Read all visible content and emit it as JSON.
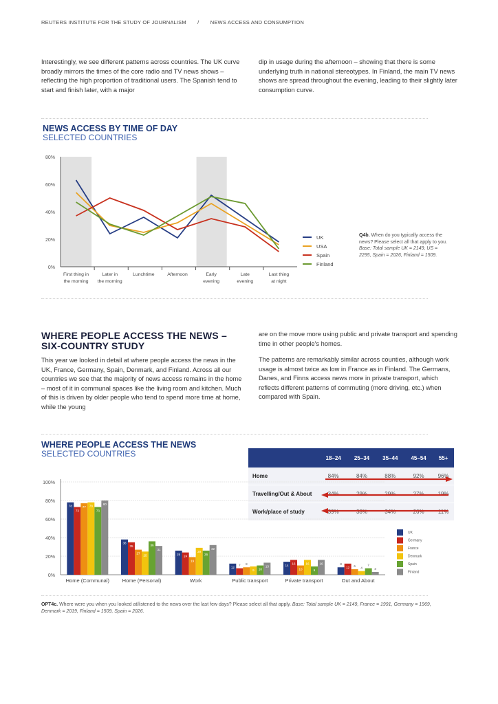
{
  "header": {
    "publisher": "REUTERS INSTITUTE FOR THE STUDY OF JOURNALISM",
    "separator": "/",
    "section": "NEWS ACCESS AND CONSUMPTION"
  },
  "intro": {
    "left": "Interestingly, we see different patterns across countries. The UK curve broadly mirrors the times of the core radio and TV news shows – reflecting the high proportion of traditional users. The Spanish tend to start and finish later, with a major",
    "right": "dip in usage during the afternoon – showing that there is some underlying truth in national stereotypes. In Finland, the main TV news shows are spread throughout the evening, leading to their slightly later consumption curve."
  },
  "line_chart_note": {
    "bold": "Q4b.",
    "text": " When do you typically access the news? Please select all that apply to you. ",
    "italic": "Base: Total sample UK = 2149, US = 2295, Spain = 2026, Finland = 1509."
  },
  "section2": {
    "title_line1": "WHERE PEOPLE ACCESS THE NEWS –",
    "title_line2": "SIX-COUNTRY STUDY",
    "left": "This year we looked in detail at where people access the news in the UK, France, Germany, Spain, Denmark, and Finland. Across all our countries we see that the majority of news access remains in the home – most of it in communal spaces like the living room and kitchen. Much of this is driven by older people who tend to spend more time at home, while the young",
    "right1": "are on the move more using public and private transport and spending time in other people's homes.",
    "right2": "The patterns are remarkably similar across counties, although work usage is almost twice as low in France as in Finland. The Germans, Danes, and Finns access news more in private transport, which reflects different patterns of commuting (more driving, etc.) when compared with Spain."
  },
  "age_table": {
    "columns": [
      "18–24",
      "25–34",
      "35–44",
      "45–54",
      "55+"
    ],
    "rows": [
      {
        "label": "Home",
        "values": [
          "84%",
          "84%",
          "88%",
          "92%",
          "96%"
        ],
        "trend": "right"
      },
      {
        "label": "Travelling/Out & About",
        "values": [
          "34%",
          "29%",
          "29%",
          "27%",
          "19%"
        ],
        "trend": "left"
      },
      {
        "label": "Work/place of study",
        "values": [
          "39%",
          "38%",
          "34%",
          "26%",
          "11%"
        ],
        "trend": "left"
      }
    ],
    "arrow_color": "#c8281e"
  },
  "bar_chart_note": {
    "bold": "OPT4c.",
    "text": " Where were you when you looked at/listened to the news over the last few days? Please select all that apply. ",
    "italic": "Base: Total sample UK = 2149, France = 1991, Germany = 1969, Denmark = 2019, Finland = 1509, Spain = 2026."
  },
  "chart_data": [
    {
      "type": "line",
      "title": "NEWS ACCESS BY TIME OF DAY",
      "subtitle": "SELECTED COUNTRIES",
      "categories": [
        "First thing in the morning",
        "Later in the morning",
        "Lunchtime",
        "Afternoon",
        "Early evening",
        "Late evening",
        "Last thing at night"
      ],
      "highlighted_categories": [
        "First thing in the morning",
        "Early evening"
      ],
      "yticks": [
        "0%",
        "20%",
        "40%",
        "60%",
        "80%"
      ],
      "ylim": [
        0,
        80
      ],
      "legend_position": "right",
      "series": [
        {
          "name": "UK",
          "color": "#263d84",
          "values": [
            63,
            24,
            36,
            21,
            52,
            35,
            18
          ]
        },
        {
          "name": "USA",
          "color": "#e9a223",
          "values": [
            54,
            30,
            25,
            32,
            46,
            31,
            16
          ]
        },
        {
          "name": "Spain",
          "color": "#c8321f",
          "values": [
            37,
            50,
            41,
            27,
            35,
            29,
            11
          ]
        },
        {
          "name": "Finland",
          "color": "#6c9a31",
          "values": [
            47,
            31,
            23,
            37,
            51,
            46,
            13
          ]
        }
      ]
    },
    {
      "type": "bar",
      "title": "WHERE PEOPLE ACCESS THE NEWS",
      "subtitle": "SELECTED COUNTRIES",
      "categories": [
        "Home (Communal)",
        "Home (Personal)",
        "Work",
        "Public transport",
        "Private transport",
        "Out and About"
      ],
      "yticks": [
        "0%",
        "20%",
        "40%",
        "60%",
        "80%",
        "100%"
      ],
      "ylim": [
        0,
        100
      ],
      "legend_position": "right",
      "series": [
        {
          "name": "UK",
          "color": "#253d83",
          "values": [
            78,
            38,
            26,
            12,
            14,
            8
          ]
        },
        {
          "name": "Germany",
          "color": "#c8281e",
          "values": [
            73,
            35,
            24,
            7,
            16,
            12
          ]
        },
        {
          "name": "France",
          "color": "#ee8f12",
          "values": [
            77,
            27,
            19,
            8,
            10,
            6
          ]
        },
        {
          "name": "Denmark",
          "color": "#f2c40e",
          "values": [
            78,
            25,
            29,
            9,
            16,
            4
          ]
        },
        {
          "name": "Spain",
          "color": "#67a332",
          "values": [
            73,
            36,
            26,
            10,
            9,
            7
          ]
        },
        {
          "name": "Finland",
          "color": "#8b8b8b",
          "values": [
            80,
            31,
            32,
            13,
            16,
            3
          ]
        }
      ]
    }
  ]
}
